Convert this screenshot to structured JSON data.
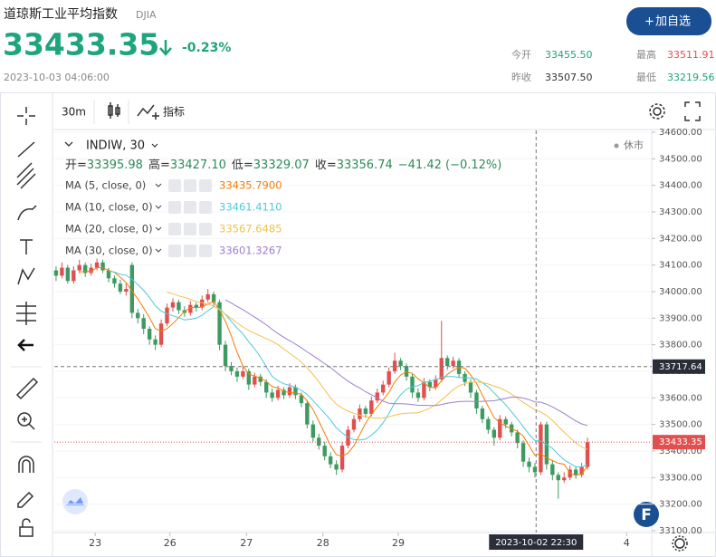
{
  "header": {
    "title": "道琼斯工业平均指数",
    "symbol": "DJIA",
    "price": "33433.35",
    "change": "-0.23%",
    "time": "2023-10-03 04:06:00",
    "button": "加自选"
  },
  "stats": [
    {
      "label": "今开",
      "value": "33455.50"
    },
    {
      "label": "最高",
      "value": "33511.91"
    },
    {
      "label": "昨收",
      "value": "33507.50"
    },
    {
      "label": "最低",
      "value": "33219.56"
    }
  ],
  "toolbar": {
    "interval": "30m",
    "indicators": "指标"
  },
  "chart_data": {
    "type": "candlestick",
    "symbol_label": "INDIW, 30",
    "status": "休市",
    "ohlc_legend": [
      {
        "label": "开=",
        "value": "33395.98"
      },
      {
        "label": "高=",
        "value": "33427.10"
      },
      {
        "label": "低=",
        "value": "33329.07"
      },
      {
        "label": "收=",
        "value": "33356.74"
      }
    ],
    "change_legend": "−41.42 (−0.12%)",
    "up_color": "#e0504f",
    "down_color": "#3d9a60",
    "grid": true,
    "ohlc": [
      [
        34080,
        34095,
        34040,
        34060
      ],
      [
        34060,
        34110,
        34050,
        34090
      ],
      [
        34090,
        34100,
        34030,
        34040
      ],
      [
        34040,
        34095,
        34030,
        34080
      ],
      [
        34080,
        34120,
        34070,
        34100
      ],
      [
        34100,
        34110,
        34055,
        34070
      ],
      [
        34070,
        34105,
        34060,
        34090
      ],
      [
        34090,
        34125,
        34080,
        34110
      ],
      [
        34110,
        34120,
        34070,
        34080
      ],
      [
        34080,
        34090,
        34035,
        34050
      ],
      [
        34050,
        34060,
        34015,
        34030
      ],
      [
        34030,
        34045,
        33990,
        34000
      ],
      [
        34000,
        34030,
        33985,
        34010
      ],
      [
        34100,
        34110,
        33900,
        33920
      ],
      [
        33920,
        33935,
        33880,
        33900
      ],
      [
        33900,
        33915,
        33840,
        33860
      ],
      [
        33860,
        33870,
        33800,
        33820
      ],
      [
        33820,
        33835,
        33780,
        33800
      ],
      [
        33800,
        33895,
        33790,
        33880
      ],
      [
        33880,
        33955,
        33870,
        33940
      ],
      [
        33940,
        33975,
        33925,
        33960
      ],
      [
        33960,
        33970,
        33915,
        33930
      ],
      [
        33930,
        33945,
        33905,
        33920
      ],
      [
        33920,
        33965,
        33910,
        33950
      ],
      [
        33950,
        33960,
        33925,
        33940
      ],
      [
        33940,
        33985,
        33930,
        33970
      ],
      [
        33970,
        34010,
        33960,
        33990
      ],
      [
        33990,
        34000,
        33945,
        33960
      ],
      [
        33960,
        33970,
        33780,
        33800
      ],
      [
        33800,
        33815,
        33700,
        33720
      ],
      [
        33720,
        33735,
        33685,
        33700
      ],
      [
        33700,
        33715,
        33660,
        33680
      ],
      [
        33680,
        33720,
        33670,
        33700
      ],
      [
        33700,
        33710,
        33630,
        33650
      ],
      [
        33650,
        33695,
        33640,
        33680
      ],
      [
        33680,
        33690,
        33645,
        33660
      ],
      [
        33660,
        33670,
        33600,
        33620
      ],
      [
        33620,
        33635,
        33585,
        33600
      ],
      [
        33600,
        33645,
        33590,
        33630
      ],
      [
        33630,
        33640,
        33595,
        33610
      ],
      [
        33610,
        33655,
        33600,
        33640
      ],
      [
        33640,
        33650,
        33595,
        33610
      ],
      [
        33610,
        33620,
        33565,
        33580
      ],
      [
        33580,
        33590,
        33485,
        33500
      ],
      [
        33500,
        33515,
        33435,
        33450
      ],
      [
        33450,
        33465,
        33405,
        33420
      ],
      [
        33420,
        33435,
        33365,
        33380
      ],
      [
        33380,
        33395,
        33335,
        33350
      ],
      [
        33350,
        33365,
        33310,
        33330
      ],
      [
        33330,
        33435,
        33320,
        33420
      ],
      [
        33420,
        33495,
        33410,
        33480
      ],
      [
        33480,
        33535,
        33470,
        33520
      ],
      [
        33520,
        33575,
        33510,
        33560
      ],
      [
        33560,
        33570,
        33525,
        33540
      ],
      [
        33540,
        33605,
        33530,
        33590
      ],
      [
        33590,
        33635,
        33580,
        33620
      ],
      [
        33620,
        33665,
        33610,
        33650
      ],
      [
        33650,
        33715,
        33640,
        33700
      ],
      [
        33700,
        33770,
        33690,
        33740
      ],
      [
        33740,
        33750,
        33705,
        33720
      ],
      [
        33720,
        33730,
        33665,
        33680
      ],
      [
        33680,
        33690,
        33600,
        33620
      ],
      [
        33620,
        33635,
        33585,
        33600
      ],
      [
        33600,
        33675,
        33590,
        33660
      ],
      [
        33660,
        33670,
        33625,
        33640
      ],
      [
        33640,
        33685,
        33630,
        33670
      ],
      [
        33670,
        33890,
        33660,
        33750
      ],
      [
        33750,
        33760,
        33705,
        33720
      ],
      [
        33720,
        33755,
        33710,
        33740
      ],
      [
        33740,
        33750,
        33675,
        33690
      ],
      [
        33690,
        33700,
        33645,
        33660
      ],
      [
        33660,
        33670,
        33600,
        33620
      ],
      [
        33620,
        33630,
        33540,
        33560
      ],
      [
        33560,
        33570,
        33505,
        33520
      ],
      [
        33520,
        33530,
        33465,
        33480
      ],
      [
        33480,
        33490,
        33420,
        33450
      ],
      [
        33450,
        33535,
        33440,
        33520
      ],
      [
        33520,
        33530,
        33485,
        33500
      ],
      [
        33500,
        33510,
        33455,
        33470
      ],
      [
        33470,
        33480,
        33410,
        33430
      ],
      [
        33430,
        33440,
        33340,
        33360
      ],
      [
        33360,
        33375,
        33320,
        33340
      ],
      [
        33340,
        33355,
        33300,
        33320
      ],
      [
        33320,
        33510,
        33310,
        33500
      ],
      [
        33500,
        33510,
        33330,
        33350
      ],
      [
        33350,
        33365,
        33290,
        33310
      ],
      [
        33310,
        33320,
        33220,
        33290
      ],
      [
        33290,
        33320,
        33280,
        33300
      ],
      [
        33300,
        33345,
        33290,
        33330
      ],
      [
        33330,
        33340,
        33295,
        33310
      ],
      [
        33310,
        33355,
        33300,
        33340
      ],
      [
        33340,
        33450,
        33330,
        33433
      ]
    ],
    "series": [
      {
        "name": "MA (5, close, 0)",
        "legend_value": "33435.7900",
        "color": "#f57c00",
        "values": [
          null,
          null,
          null,
          null,
          34074,
          34076,
          34076,
          34090,
          34090,
          34080,
          34072,
          34054,
          34034,
          34002,
          33972,
          33938,
          33902,
          33860,
          33852,
          33860,
          33880,
          33902,
          33926,
          33940,
          33940,
          33942,
          33954,
          33962,
          33932,
          33888,
          33834,
          33772,
          33720,
          33690,
          33682,
          33674,
          33662,
          33642,
          33638,
          33624,
          33620,
          33618,
          33614,
          33588,
          33556,
          33512,
          33466,
          33420,
          33386,
          33380,
          33392,
          33420,
          33462,
          33504,
          33538,
          33566,
          33592,
          33620,
          33660,
          33686,
          33698,
          33692,
          33672,
          33656,
          33640,
          33638,
          33664,
          33688,
          33704,
          33714,
          33712,
          33686,
          33654,
          33610,
          33568,
          33526,
          33506,
          33494,
          33484,
          33474,
          33456,
          33420,
          33384,
          33390,
          33374,
          33364,
          33354,
          33350,
          33316,
          33308,
          33314,
          33343
        ]
      },
      {
        "name": "MA (10, close, 0)",
        "legend_value": "33461.4110",
        "color": "#4cc9d9",
        "values": [
          null,
          null,
          null,
          null,
          null,
          null,
          null,
          null,
          null,
          34077,
          34074,
          34065,
          34062,
          34046,
          34026,
          34005,
          33978,
          33947,
          33927,
          33916,
          33909,
          33902,
          33893,
          33896,
          33900,
          33911,
          33928,
          33944,
          33936,
          33914,
          33888,
          33863,
          33841,
          33811,
          33785,
          33754,
          33717,
          33681,
          33664,
          33653,
          33647,
          33640,
          33628,
          33613,
          33590,
          33566,
          33542,
          33517,
          33487,
          33468,
          33452,
          33443,
          33441,
          33445,
          33459,
          33479,
          33506,
          33541,
          33582,
          33612,
          33632,
          33642,
          33646,
          33658,
          33663,
          33668,
          33678,
          33680,
          33680,
          33677,
          33675,
          33675,
          33671,
          33657,
          33641,
          33619,
          33596,
          33574,
          33547,
          33521,
          33491,
          33463,
          33439,
          33437,
          33424,
          33410,
          33387,
          33367,
          33353,
          33341,
          33339,
          33349
        ]
      },
      {
        "name": "MA (20, close, 0)",
        "legend_value": "33567.6485",
        "color": "#f2c14e",
        "values": [
          null,
          null,
          null,
          null,
          null,
          null,
          null,
          null,
          null,
          null,
          null,
          null,
          null,
          null,
          null,
          null,
          null,
          null,
          null,
          33997,
          33992,
          33984,
          33978,
          33971,
          33963,
          33958,
          33953,
          33946,
          33932,
          33915,
          33899,
          33883,
          33867,
          33854,
          33843,
          33833,
          33823,
          33813,
          33800,
          33784,
          33768,
          33752,
          33735,
          33712,
          33688,
          33660,
          33630,
          33599,
          33576,
          33561,
          33550,
          33542,
          33535,
          33529,
          33525,
          33523,
          33524,
          33529,
          33535,
          33540,
          33542,
          33543,
          33544,
          33552,
          33561,
          33574,
          33592,
          33611,
          33631,
          33645,
          33654,
          33659,
          33659,
          33658,
          33652,
          33644,
          33637,
          33627,
          33614,
          33599,
          33583,
          33569,
          33555,
          33547,
          33533,
          33515,
          33492,
          33471,
          33450,
          33431,
          33415,
          33406
        ]
      },
      {
        "name": "MA (30, close, 0)",
        "legend_value": "33601.3267",
        "color": "#9c7fd0",
        "values": [
          null,
          null,
          null,
          null,
          null,
          null,
          null,
          null,
          null,
          null,
          null,
          null,
          null,
          null,
          null,
          null,
          null,
          null,
          null,
          null,
          null,
          null,
          null,
          null,
          null,
          null,
          null,
          null,
          null,
          33969,
          33957,
          33944,
          33932,
          33918,
          33904,
          33890,
          33875,
          33858,
          33842,
          33828,
          33815,
          33802,
          33788,
          33773,
          33759,
          33744,
          33729,
          33714,
          33696,
          33679,
          33663,
          33649,
          33637,
          33623,
          33612,
          33600,
          33588,
          33580,
          33578,
          33578,
          33577,
          33575,
          33572,
          33572,
          33571,
          33571,
          33575,
          33580,
          33583,
          33586,
          33587,
          33587,
          33586,
          33587,
          33588,
          33589,
          33593,
          33598,
          33603,
          33603,
          33599,
          33593,
          33585,
          33584,
          33576,
          33566,
          33554,
          33541,
          33527,
          33513,
          33502,
          33496
        ]
      }
    ],
    "xlim": [
      -0.3,
      102
    ],
    "xticks": [
      {
        "value": 6.7,
        "label": "23"
      },
      {
        "value": 19.5,
        "label": "26"
      },
      {
        "value": 32.6,
        "label": "27"
      },
      {
        "value": 45.7,
        "label": "28"
      },
      {
        "value": 58.6,
        "label": "29"
      },
      {
        "value": 97.7,
        "label": "4"
      }
    ],
    "ylim": [
      33093,
      34634
    ],
    "yticks": [
      {
        "value": 33100,
        "label": "33100.00"
      },
      {
        "value": 33200,
        "label": "33200.00"
      },
      {
        "value": 33300,
        "label": "33300.00"
      },
      {
        "value": 33400,
        "label": "33400.00"
      },
      {
        "value": 33500,
        "label": "33500.00"
      },
      {
        "value": 33600,
        "label": "33600.00"
      },
      {
        "value": 33700,
        "label": "33700.00"
      },
      {
        "value": 33800,
        "label": "33800.00"
      },
      {
        "value": 33900,
        "label": "33900.00"
      },
      {
        "value": 34000,
        "label": "34000.00"
      },
      {
        "value": 34100,
        "label": "34100.00"
      },
      {
        "value": 34200,
        "label": "34200.00"
      },
      {
        "value": 34300,
        "label": "34300.00"
      },
      {
        "value": 34400,
        "label": "34400.00"
      },
      {
        "value": 34500,
        "label": "34500.00"
      },
      {
        "value": 34600,
        "label": "34600.00"
      }
    ],
    "last_price": {
      "value": 33433.35,
      "label": "33433.35"
    },
    "crosshair": {
      "x": {
        "value": 82.2,
        "label": "2023-10-02  22:30"
      },
      "y": {
        "value": 33717.64,
        "label": "33717.64"
      }
    }
  }
}
